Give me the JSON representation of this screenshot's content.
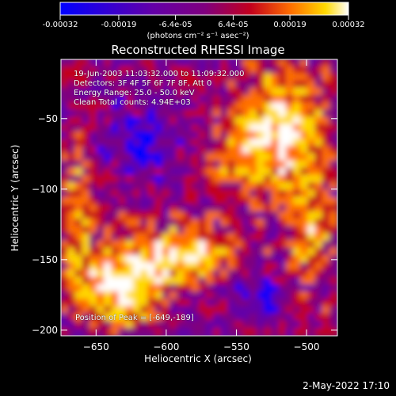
{
  "chart_data": {
    "type": "heatmap",
    "colorbar": {
      "ticks": [
        "-0.00032",
        "-0.00019",
        "-6.4e-05",
        "6.4e-05",
        "0.00019",
        "0.00032"
      ],
      "values": [
        -0.00032,
        -0.00019,
        -6.4e-05,
        6.4e-05,
        0.00019,
        0.00032
      ],
      "range": [
        -0.00032,
        0.00032
      ],
      "units": "(photons cm⁻² s⁻¹ asec⁻²)"
    },
    "title": "Reconstructed RHESSI Image",
    "xlabel": "Heliocentric X (arcsec)",
    "ylabel": "Heliocentric Y (arcsec)",
    "xlim": [
      -675,
      -478
    ],
    "ylim": [
      -204,
      -8
    ],
    "xticks": [
      -650,
      -600,
      -550,
      -500
    ],
    "yticks": [
      -50,
      -100,
      -150,
      -200
    ],
    "x_tick_labels": [
      "−650",
      "−600",
      "−550",
      "−500"
    ],
    "y_tick_labels": [
      "−50",
      "−100",
      "−150",
      "−200"
    ],
    "annotations": {
      "line1": "19-Jun-2003 11:03:32.000 to 11:09:32.000",
      "line2": "Detectors: 3F 4F 5F 6F 7F 8F, Att 0",
      "line3": "Energy Range: 25.0 - 50.0 keV",
      "line4": "Clean    Total counts: 4.94E+03",
      "peak": "Position of Peak = [-649,-189]"
    },
    "peak_position": [
      -649,
      -189
    ],
    "grid": false,
    "colormap": [
      "#0000ff",
      "#6300a8",
      "#7f007f",
      "#c3001d",
      "#ff6f00",
      "#ffd900",
      "#ffffff"
    ]
  },
  "timestamp": "2-May-2022 17:10"
}
